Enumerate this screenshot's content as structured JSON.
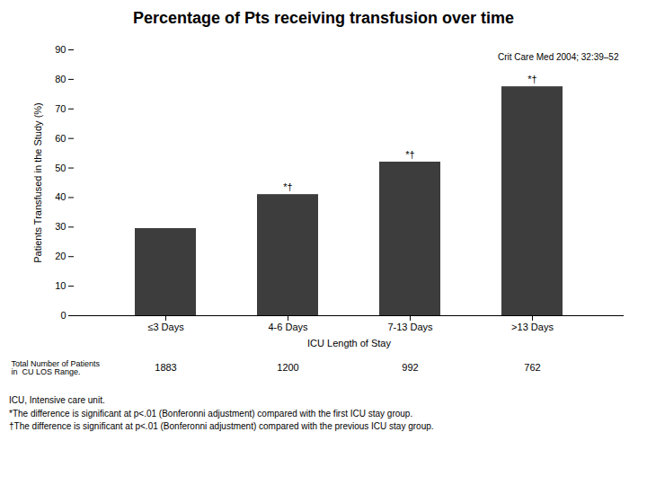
{
  "chart_data": {
    "type": "bar",
    "title": "Percentage of Pts receiving transfusion over time",
    "categories": [
      "≤3 Days",
      "4-6 Days",
      "7-13 Days",
      ">13 Days"
    ],
    "values": [
      29.5,
      41.0,
      52.0,
      77.5
    ],
    "color": "#3d3d3d",
    "ylabel": "Patients Transfused in the Study (%)",
    "xlabel": "ICU Length of Stay",
    "ylim": [
      0,
      90
    ],
    "yticks": [
      0,
      10,
      20,
      30,
      40,
      50,
      60,
      70,
      80,
      90
    ],
    "grid": false,
    "annotations": [
      null,
      "*†",
      "*†",
      "*†"
    ],
    "reference_text": "Crit Care Med 2004; 32:39–52",
    "patient_counts": [
      "1883",
      "1200",
      "992",
      "762"
    ],
    "footnote_label": "Total Number of Patients\nin  CU LOS Range.",
    "footnotes": [
      "ICU, Intensive care unit.",
      "*The difference is significant at p<.01 (Bonferonni adjustment) compared with the first  ICU stay group.",
      "†The difference is significant at p<.01 (Bonferonni adjustment) compared with the previous ICU stay group."
    ]
  }
}
